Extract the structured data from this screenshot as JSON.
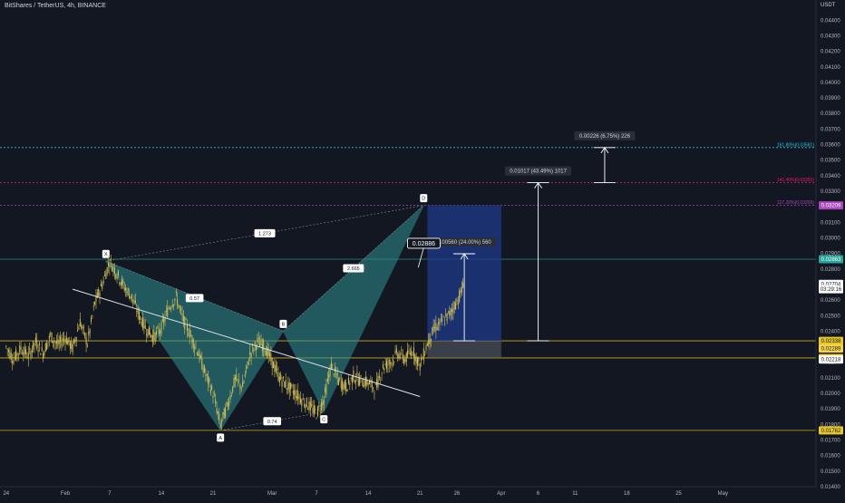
{
  "header": {
    "symbol": "BitShares / TetherUS, 4h, BINANCE",
    "quote_unit": "USDT"
  },
  "colors": {
    "background": "#131722",
    "candle": "#d4c15a",
    "pattern_fill": "#2f8f8f",
    "position_blue": "#1e3a8a",
    "fib_161": "#26c6da",
    "fib_141": "#e91e63",
    "fib_127": "#ab47bc",
    "level_teal": "#26a69a",
    "level_yellow": "#e5c72b",
    "trendline": "#e0e3eb"
  },
  "chart_data": {
    "type": "line",
    "title": "BitShares / TetherUS, 4h, BINANCE",
    "ylabel": "USDT",
    "ylim": [
      0.014,
      0.0453
    ],
    "y_ticks": [
      0.014,
      0.015,
      0.016,
      0.017,
      0.018,
      0.019,
      0.02,
      0.021,
      0.022,
      0.023,
      0.024,
      0.025,
      0.026,
      0.027,
      0.028,
      0.029,
      0.03,
      0.031,
      0.032,
      0.033,
      0.034,
      0.035,
      0.036,
      0.037,
      0.038,
      0.039,
      0.04,
      0.041,
      0.042,
      0.043,
      0.044
    ],
    "y_tick_labels": [
      "0.01400",
      "0.01500",
      "0.01600",
      "0.01700",
      "0.01800",
      "0.01900",
      "0.02000",
      "0.02100",
      "0.02200",
      "0.02300",
      "0.02400",
      "0.02500",
      "0.02600",
      "0.02700",
      "0.02800",
      "0.02900",
      "0.03000",
      "0.03100",
      "0.03200",
      "0.03300",
      "0.03400",
      "0.03500",
      "0.03600",
      "0.03700",
      "0.03800",
      "0.03900",
      "0.04000",
      "0.04100",
      "0.04200",
      "0.04300",
      "0.04400"
    ],
    "x_ticks": [
      {
        "label": "24",
        "day": 0
      },
      {
        "label": "Feb",
        "day": 8
      },
      {
        "label": "7",
        "day": 14
      },
      {
        "label": "14",
        "day": 21
      },
      {
        "label": "21",
        "day": 28
      },
      {
        "label": "Mar",
        "day": 36
      },
      {
        "label": "7",
        "day": 42
      },
      {
        "label": "14",
        "day": 49
      },
      {
        "label": "21",
        "day": 56
      },
      {
        "label": "26",
        "day": 61
      },
      {
        "label": "Apr",
        "day": 67
      },
      {
        "label": "6",
        "day": 72
      },
      {
        "label": "11",
        "day": 77
      },
      {
        "label": "18",
        "day": 84
      },
      {
        "label": "25",
        "day": 91
      },
      {
        "label": "May",
        "day": 97
      }
    ],
    "series": [
      {
        "points": [
          [
            0,
            0.023
          ],
          [
            1,
            0.0222
          ],
          [
            2,
            0.0229
          ],
          [
            3,
            0.0224
          ],
          [
            4,
            0.0233
          ],
          [
            5,
            0.0226
          ],
          [
            6,
            0.0237
          ],
          [
            7,
            0.0231
          ],
          [
            8,
            0.0236
          ],
          [
            9,
            0.0229
          ],
          [
            10,
            0.0246
          ],
          [
            11,
            0.0232
          ],
          [
            12,
            0.0258
          ],
          [
            13,
            0.027
          ],
          [
            14,
            0.0285
          ],
          [
            15,
            0.0277
          ],
          [
            16,
            0.0268
          ],
          [
            17,
            0.0262
          ],
          [
            18,
            0.025
          ],
          [
            19,
            0.0241
          ],
          [
            20,
            0.0236
          ],
          [
            21,
            0.0242
          ],
          [
            22,
            0.0255
          ],
          [
            23,
            0.0262
          ],
          [
            24,
            0.0247
          ],
          [
            25,
            0.0237
          ],
          [
            26,
            0.0226
          ],
          [
            27,
            0.0212
          ],
          [
            28,
            0.02
          ],
          [
            29,
            0.018
          ],
          [
            30,
            0.0193
          ],
          [
            31,
            0.0209
          ],
          [
            32,
            0.0204
          ],
          [
            33,
            0.0225
          ],
          [
            34,
            0.0233
          ],
          [
            35,
            0.023
          ],
          [
            36,
            0.022
          ],
          [
            37,
            0.021
          ],
          [
            38,
            0.0205
          ],
          [
            39,
            0.0201
          ],
          [
            40,
            0.0196
          ],
          [
            41,
            0.0192
          ],
          [
            42,
            0.0187
          ],
          [
            43,
            0.0196
          ],
          [
            44,
            0.0218
          ],
          [
            45,
            0.0208
          ],
          [
            46,
            0.0204
          ],
          [
            47,
            0.0211
          ],
          [
            48,
            0.0208
          ],
          [
            49,
            0.0207
          ],
          [
            50,
            0.0203
          ],
          [
            51,
            0.0217
          ],
          [
            52,
            0.022
          ],
          [
            53,
            0.0226
          ],
          [
            54,
            0.0222
          ],
          [
            55,
            0.0228
          ],
          [
            56,
            0.0218
          ],
          [
            57,
            0.0232
          ],
          [
            58,
            0.0242
          ],
          [
            59,
            0.0246
          ],
          [
            60,
            0.0251
          ],
          [
            61,
            0.0259
          ],
          [
            62,
            0.027
          ]
        ]
      }
    ],
    "harmonic_pattern": {
      "points": [
        {
          "label": "X",
          "day": 13.5,
          "price": 0.0285
        },
        {
          "label": "A",
          "day": 29,
          "price": 0.01762
        },
        {
          "label": "B",
          "day": 37.5,
          "price": 0.024
        },
        {
          "label": "C",
          "day": 43,
          "price": 0.0188
        },
        {
          "label": "D",
          "day": 56.5,
          "price": 0.03209
        }
      ],
      "ratios": [
        {
          "label": "1.273",
          "between": "X-D"
        },
        {
          "label": "0.57",
          "between": "X-B"
        },
        {
          "label": "2.665",
          "between": "B-D"
        },
        {
          "label": "0.74",
          "between": "A-C"
        }
      ]
    },
    "trendline": {
      "from": [
        9,
        0.0267
      ],
      "to": [
        56,
        0.0198
      ]
    },
    "horizontal_levels": [
      {
        "price": 0.02863,
        "label": "0.02863",
        "color": "#26a69a"
      },
      {
        "price": 0.02338,
        "label": "0.02338",
        "color": "#e5c72b"
      },
      {
        "price": 0.02228,
        "label": "0.02228",
        "color": "#e5c72b"
      },
      {
        "price": 0.01762,
        "label": "0.01762",
        "color": "#e5c72b"
      }
    ],
    "fib_levels": [
      {
        "ratio_label": "161.80%(0.03581)",
        "price": 0.03581,
        "color": "#26c6da"
      },
      {
        "ratio_label": "141.40%(0.03355)",
        "price": 0.03355,
        "color": "#e91e63"
      },
      {
        "ratio_label": "127.20%(0.03209)",
        "price": 0.03209,
        "color": "#ab47bc"
      }
    ],
    "price_tags": [
      {
        "text": "0.03209",
        "price": 0.03209,
        "bg": "#ab47bc",
        "fg": "#ffffff"
      },
      {
        "text": "0.02863",
        "price": 0.02863,
        "bg": "#26a69a",
        "fg": "#ffffff"
      },
      {
        "text": "0.02704",
        "price": 0.02704,
        "bg": "#ffffff",
        "fg": "#131722"
      },
      {
        "text": "03:29:16",
        "price": 0.0267,
        "bg": "#ffffff",
        "fg": "#131722"
      },
      {
        "text": "0.02338",
        "price": 0.02338,
        "bg": "#e5c72b",
        "fg": "#131722"
      },
      {
        "text": "0.02289",
        "price": 0.02289,
        "bg": "#f5d34a",
        "fg": "#131722"
      },
      {
        "text": "0.02228",
        "price": 0.02228,
        "bg": "#e5c72b",
        "fg": "#131722"
      },
      {
        "text": "0.02218",
        "price": 0.02218,
        "bg": "#ffffff",
        "fg": "#131722"
      },
      {
        "text": "0.01762",
        "price": 0.01762,
        "bg": "#e5c72b",
        "fg": "#131722"
      }
    ],
    "long_position": {
      "start_day": 57,
      "end_day": 67,
      "entry": 0.02338,
      "target": 0.03209,
      "stop": 0.02228
    },
    "measure_notes": [
      {
        "text": "0.00560 (24.00%) 560",
        "day": 62,
        "from": 0.02338,
        "to": 0.02898
      },
      {
        "text": "0.01017 (43.49%) 1017",
        "day": 72,
        "from": 0.02338,
        "to": 0.03355
      },
      {
        "text": "0.00226 (6.75%) 226",
        "day": 81,
        "from": 0.03355,
        "to": 0.03581
      }
    ],
    "callout": {
      "text": "0.02886",
      "day": 57.5,
      "price": 0.0291
    }
  }
}
